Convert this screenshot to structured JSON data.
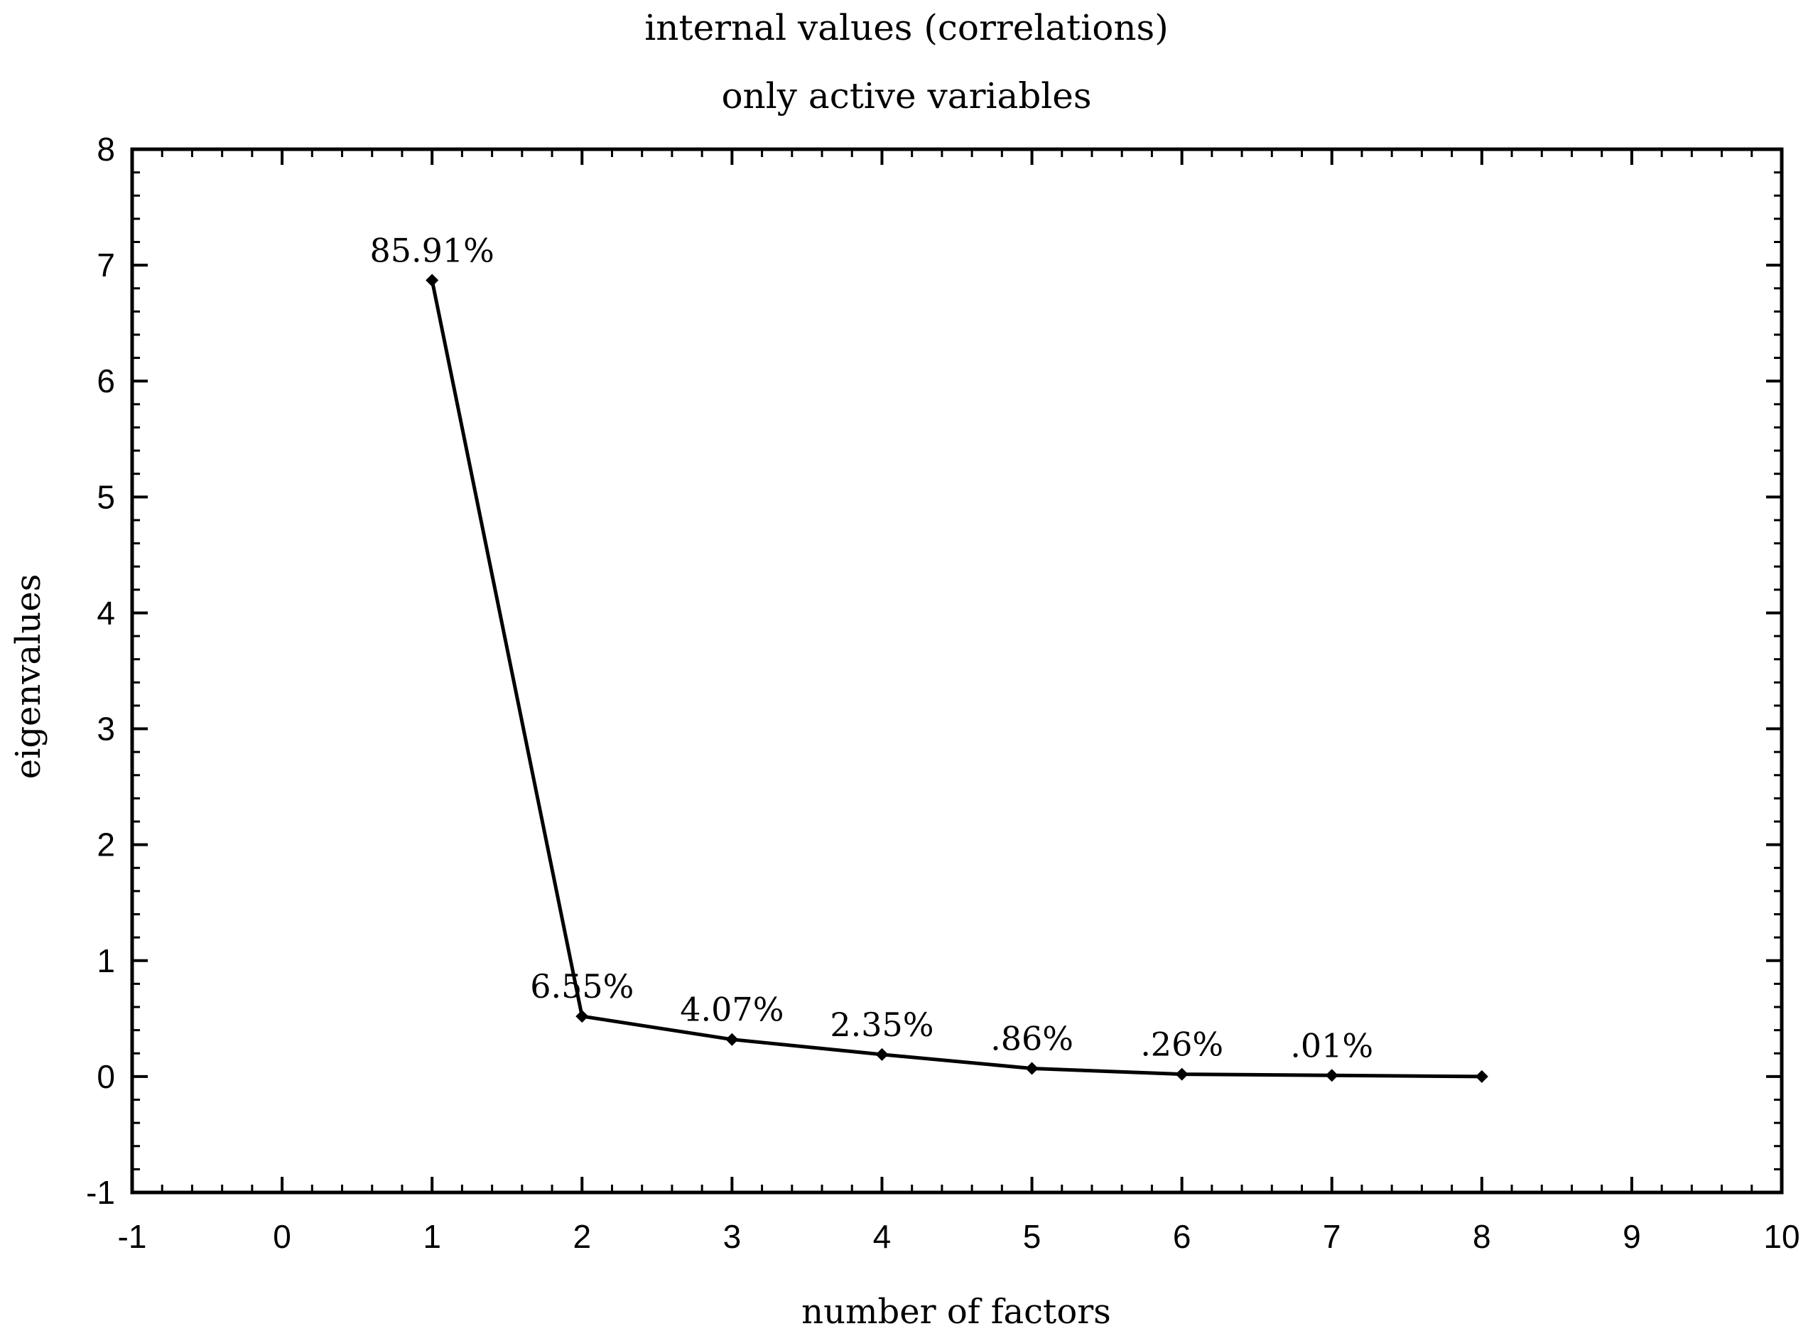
{
  "chart_data": {
    "type": "line",
    "title": "internal values (correlations)",
    "subtitle": "only active variables",
    "xlabel": "number of factors",
    "ylabel": "eigenvalues",
    "xlim": [
      -1,
      10
    ],
    "ylim": [
      -1,
      8
    ],
    "xticks": [
      "-1",
      "0",
      "1",
      "2",
      "3",
      "4",
      "5",
      "6",
      "7",
      "8",
      "9",
      "10"
    ],
    "yticks": [
      "-1",
      "0",
      "1",
      "2",
      "3",
      "4",
      "5",
      "6",
      "7",
      "8"
    ],
    "grid": false,
    "x": [
      1,
      2,
      3,
      4,
      5,
      6,
      7,
      8
    ],
    "y": [
      6.87,
      0.52,
      0.32,
      0.19,
      0.07,
      0.02,
      0.01,
      0.0
    ],
    "point_labels": [
      "85.91%",
      "6.55%",
      "4.07%",
      "2.35%",
      ".86%",
      ".26%",
      ".01%",
      ""
    ]
  }
}
